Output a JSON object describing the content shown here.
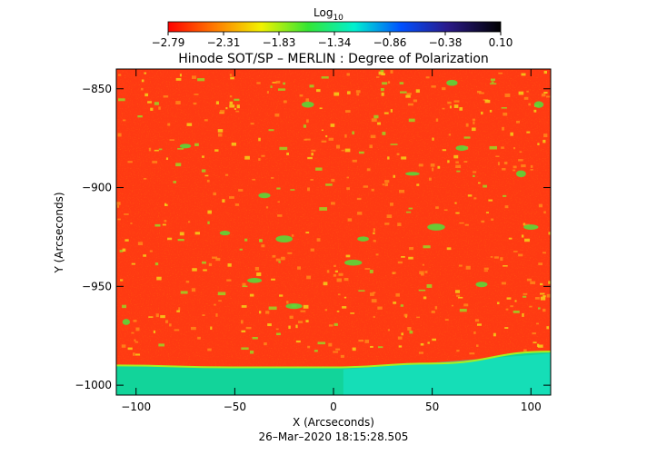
{
  "colorbar": {
    "label_base": "Log",
    "label_sub": "10",
    "ticks": [
      "−2.79",
      "−2.31",
      "−1.83",
      "−1.34",
      "−0.86",
      "−0.38",
      "0.10"
    ],
    "colors": [
      "#ff0000",
      "#ff7a00",
      "#f2f200",
      "#33e633",
      "#00f0d0",
      "#0050ff",
      "#2a1a8a",
      "#000000"
    ]
  },
  "title": "Hinode SOT/SP – MERLIN : Degree of Polarization",
  "xlabel": "X (Arcseconds)",
  "ylabel": "Y (Arcseconds)",
  "timestamp": "26–Mar–2020 18:15:28.505",
  "chart_data": {
    "type": "heatmap",
    "title": "Hinode SOT/SP – MERLIN : Degree of Polarization",
    "xlabel": "X (Arcseconds)",
    "ylabel": "Y (Arcseconds)",
    "xlim": [
      -110,
      110
    ],
    "ylim": [
      -1005,
      -840
    ],
    "x_ticks": [
      -100,
      -50,
      0,
      50,
      100
    ],
    "x_tick_labels": [
      "−100",
      "−50",
      "0",
      "50",
      "100"
    ],
    "y_ticks": [
      -850,
      -900,
      -950,
      -1000
    ],
    "y_tick_labels": [
      "−850",
      "−900",
      "−950",
      "−1000"
    ],
    "color_scale": "Log10",
    "color_range": [
      -2.79,
      0.1
    ],
    "limb_y": [
      {
        "x": -110,
        "y": -990
      },
      {
        "x": -50,
        "y": -991
      },
      {
        "x": 0,
        "y": -991
      },
      {
        "x": 50,
        "y": -989
      },
      {
        "x": 110,
        "y": -983
      }
    ]
  }
}
